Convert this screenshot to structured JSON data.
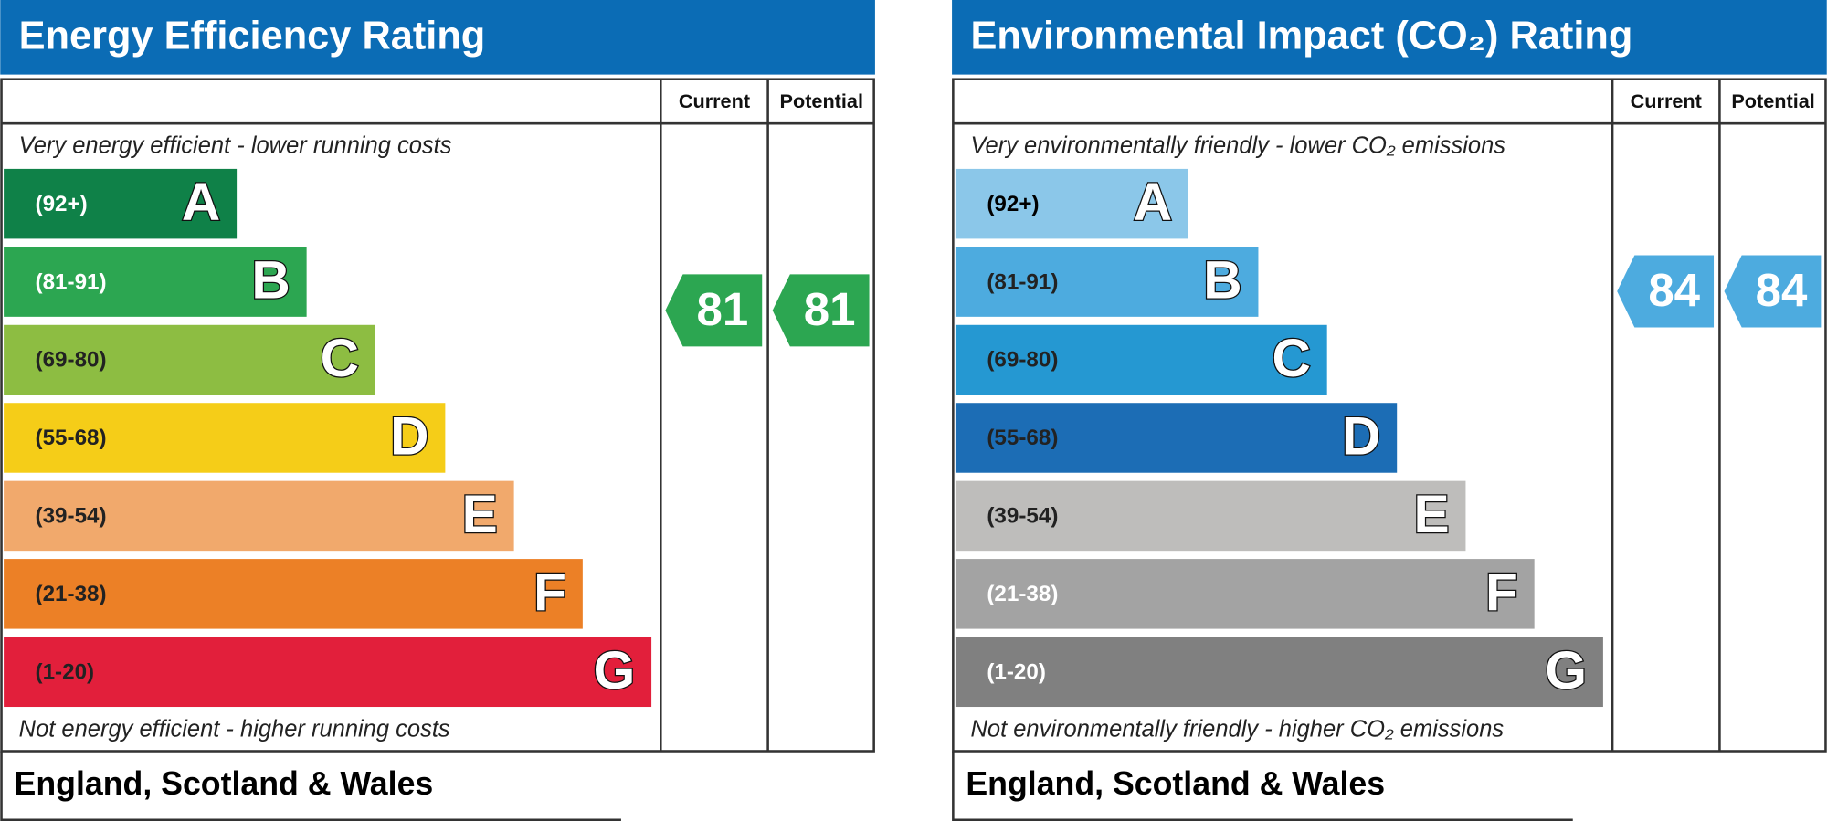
{
  "panels": [
    {
      "title": "Energy Efficiency Rating",
      "columns": [
        "Current",
        "Potential"
      ],
      "top_note": "Very energy efficient - lower running costs",
      "bottom_note": "Not energy efficient - higher running costs",
      "title_color": "#0b6cb5",
      "bands": [
        {
          "range": "(92+)",
          "letter": "A",
          "color": "#0f8148",
          "label_color": "#ffffff"
        },
        {
          "range": "(81-91)",
          "letter": "B",
          "color": "#2ca651",
          "label_color": "#ffffff"
        },
        {
          "range": "(69-80)",
          "letter": "C",
          "color": "#8dbd42",
          "label_color": "#222222"
        },
        {
          "range": "(55-68)",
          "letter": "D",
          "color": "#f5cd18",
          "label_color": "#222222"
        },
        {
          "range": "(39-54)",
          "letter": "E",
          "color": "#f1a96c",
          "label_color": "#222222"
        },
        {
          "range": "(21-38)",
          "letter": "F",
          "color": "#ec8026",
          "label_color": "#222222"
        },
        {
          "range": "(1-20)",
          "letter": "G",
          "color": "#e21f3b",
          "label_color": "#222222"
        }
      ],
      "current": 81,
      "potential": 81,
      "arrow_color": "#2ca651",
      "region": "England, Scotland & Wales"
    },
    {
      "title": "Environmental Impact (CO₂) Rating",
      "columns": [
        "Current",
        "Potential"
      ],
      "top_note": "Very environmentally friendly - lower CO₂ emissions",
      "bottom_note": "Not environmentally friendly - higher CO₂ emissions",
      "title_color": "#0b6cb5",
      "bands": [
        {
          "range": "(92+)",
          "letter": "A",
          "color": "#8bc7e9",
          "label_color": "#000000"
        },
        {
          "range": "(81-91)",
          "letter": "B",
          "color": "#4dabdf",
          "label_color": "#222222"
        },
        {
          "range": "(69-80)",
          "letter": "C",
          "color": "#2598d2",
          "label_color": "#222222"
        },
        {
          "range": "(55-68)",
          "letter": "D",
          "color": "#1c6db5",
          "label_color": "#222222"
        },
        {
          "range": "(39-54)",
          "letter": "E",
          "color": "#bebdbb",
          "label_color": "#222222"
        },
        {
          "range": "(21-38)",
          "letter": "F",
          "color": "#a3a3a3",
          "label_color": "#ffffff"
        },
        {
          "range": "(1-20)",
          "letter": "G",
          "color": "#808080",
          "label_color": "#ffffff"
        }
      ],
      "current": 84,
      "potential": 84,
      "arrow_color": "#4dabdf",
      "region": "England, Scotland & Wales"
    }
  ]
}
